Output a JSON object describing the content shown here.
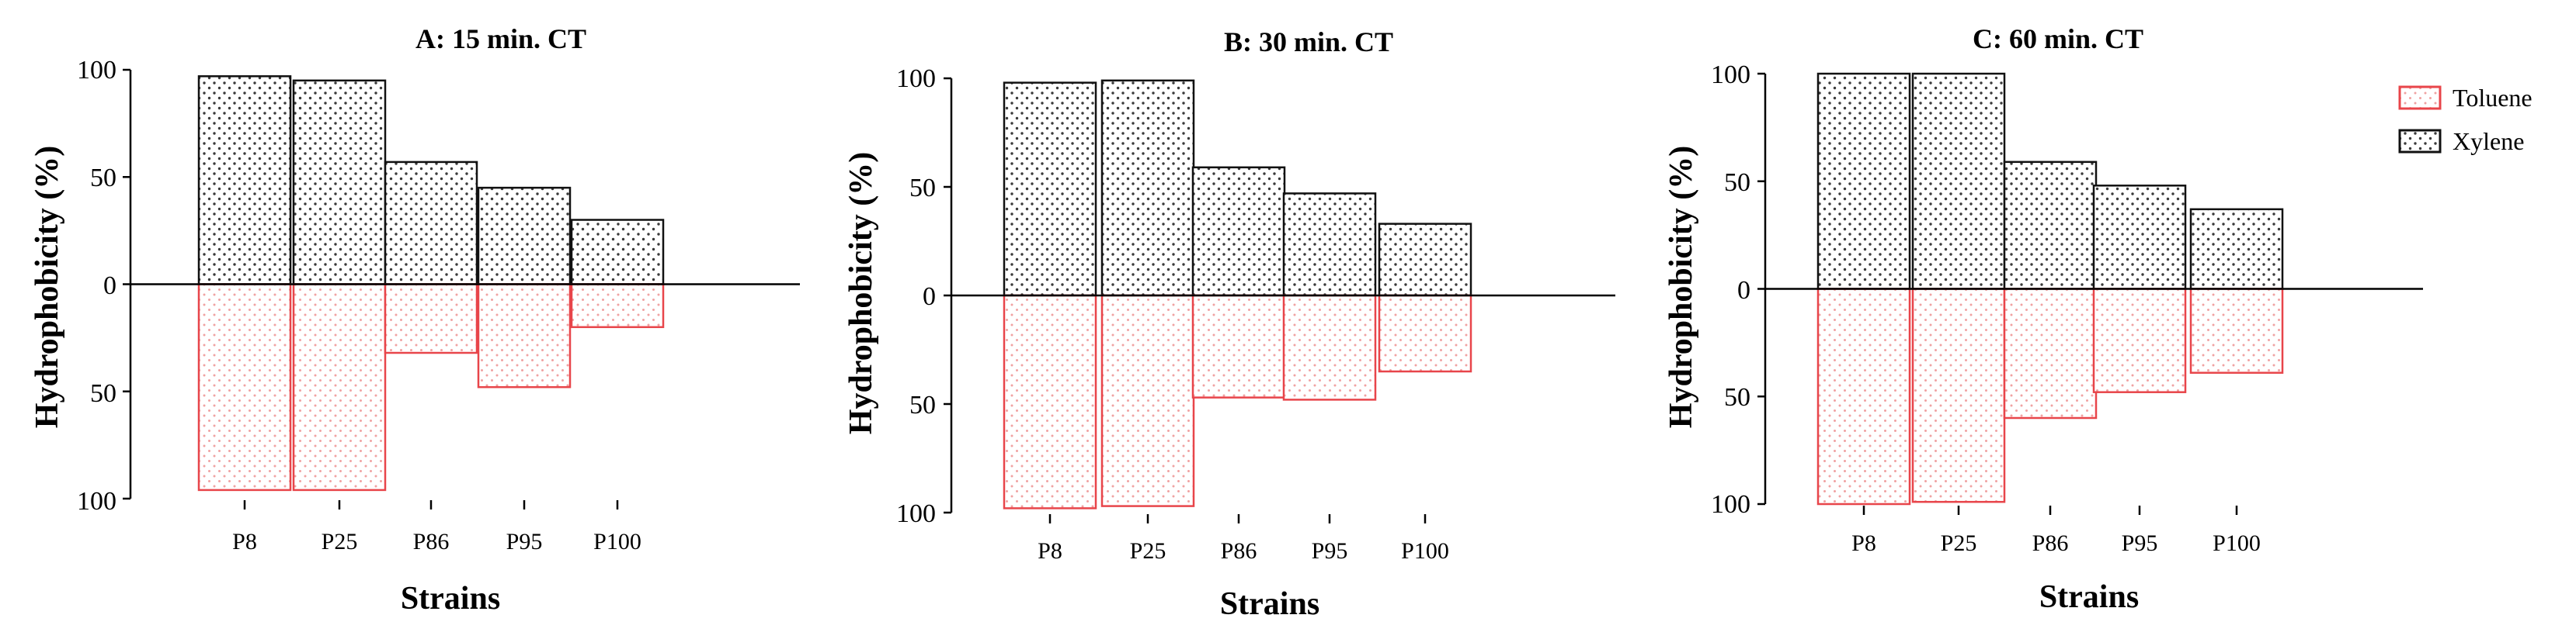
{
  "chart_data": [
    {
      "type": "bar",
      "title": "A: 15 min. CT",
      "xlabel": "Strains",
      "ylabel": "Hydrophobicity (%)",
      "categories": [
        "P8",
        "P25",
        "P86",
        "P95",
        "P100"
      ],
      "ylim": [
        -100,
        100
      ],
      "yticks": [
        100,
        50,
        0,
        -50,
        -100
      ],
      "ytick_labels": [
        "100",
        "50",
        "0",
        "50",
        "100"
      ],
      "series": [
        {
          "name": "Xylene",
          "direction": "up",
          "values": [
            97,
            95,
            57,
            45,
            30
          ]
        },
        {
          "name": "Toluene",
          "direction": "down",
          "values": [
            96,
            96,
            32,
            48,
            20
          ]
        }
      ]
    },
    {
      "type": "bar",
      "title": "B: 30 min. CT",
      "xlabel": "Strains",
      "ylabel": "Hydrophobicity (%)",
      "categories": [
        "P8",
        "P25",
        "P86",
        "P95",
        "P100"
      ],
      "ylim": [
        -100,
        100
      ],
      "yticks": [
        100,
        50,
        0,
        -50,
        -100
      ],
      "ytick_labels": [
        "100",
        "50",
        "0",
        "50",
        "100"
      ],
      "series": [
        {
          "name": "Xylene",
          "direction": "up",
          "values": [
            98,
            99,
            59,
            47,
            33
          ]
        },
        {
          "name": "Toluene",
          "direction": "down",
          "values": [
            98,
            97,
            47,
            48,
            35
          ]
        }
      ]
    },
    {
      "type": "bar",
      "title": "C: 60 min. CT",
      "xlabel": "Strains",
      "ylabel": "Hydrophobicity (%)",
      "categories": [
        "P8",
        "P25",
        "P86",
        "P95",
        "P100"
      ],
      "ylim": [
        -100,
        100
      ],
      "yticks": [
        100,
        50,
        0,
        -50,
        -100
      ],
      "ytick_labels": [
        "100",
        "50",
        "0",
        "50",
        "100"
      ],
      "series": [
        {
          "name": "Xylene",
          "direction": "up",
          "values": [
            100,
            100,
            59,
            48,
            37
          ]
        },
        {
          "name": "Toluene",
          "direction": "down",
          "values": [
            100,
            99,
            60,
            48,
            39
          ]
        }
      ],
      "legend": {
        "position": "top-right",
        "entries": [
          "Toluene",
          "Xylene"
        ]
      }
    }
  ],
  "colors": {
    "toluene_stroke": "#e8454a",
    "toluene_dot": "#f2a9a9",
    "xylene_stroke": "#111111",
    "xylene_dot": "#444444"
  }
}
